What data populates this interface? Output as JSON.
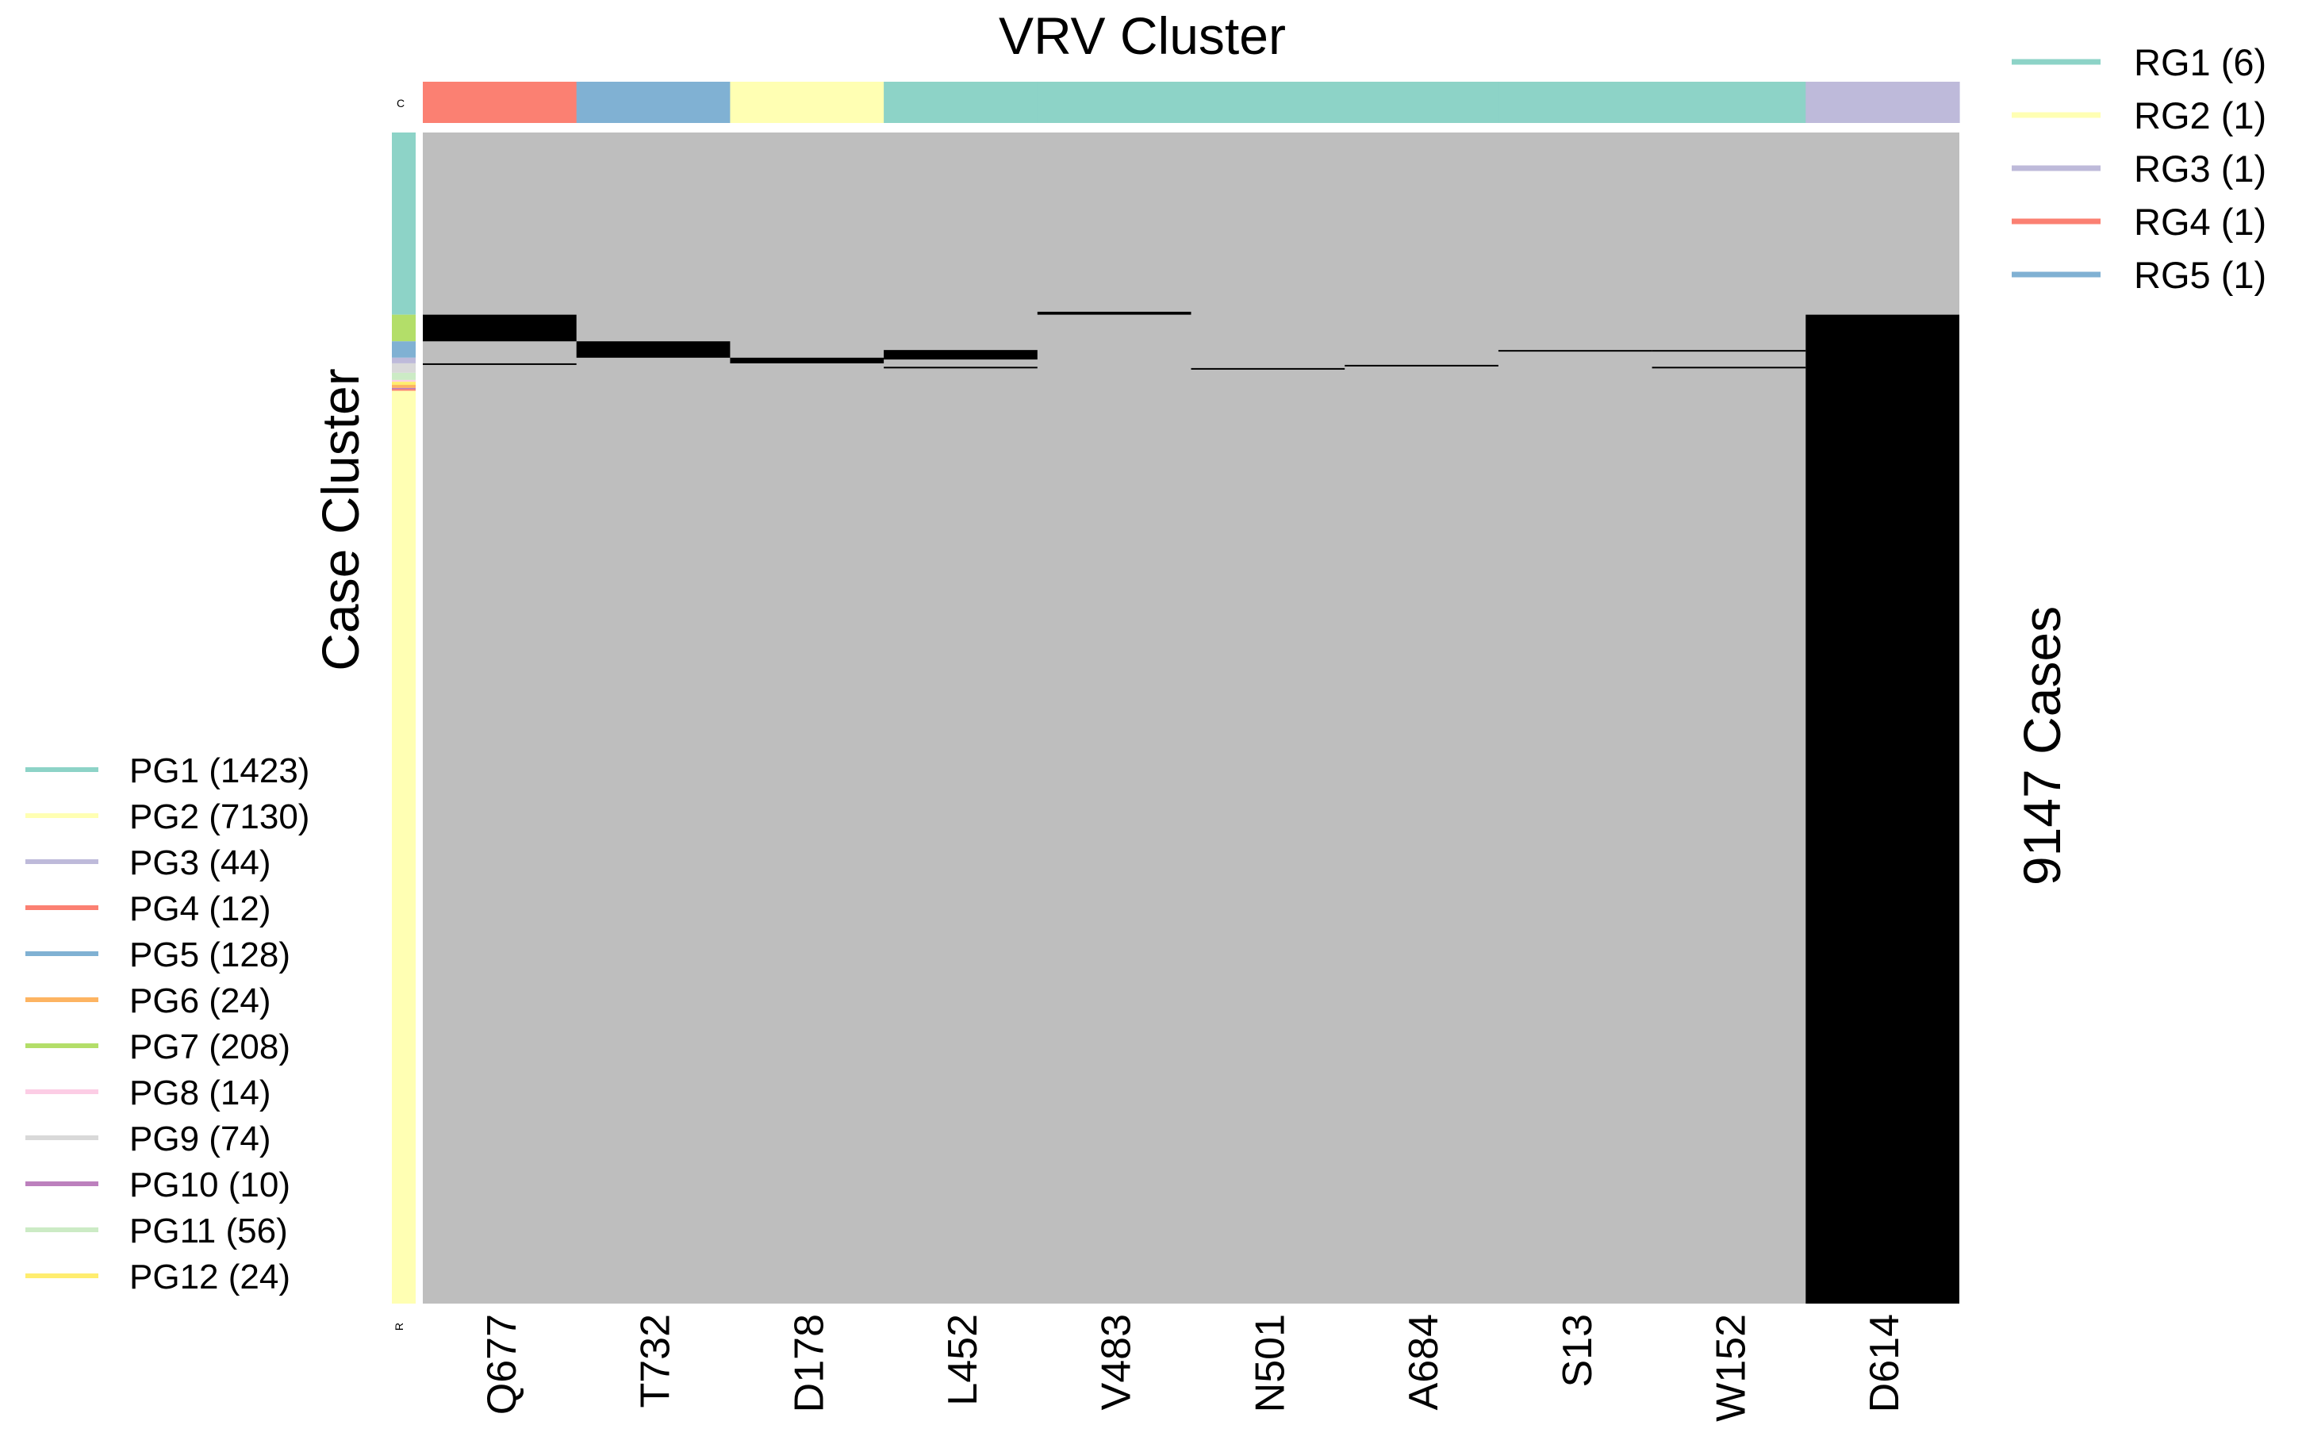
{
  "chart_data": {
    "type": "heatmap",
    "title": "VRV Cluster",
    "ylabel": "Case Cluster",
    "right_label": "9147 Cases",
    "top_track_label": "C",
    "bottom_track_label": "R",
    "background_color": "#bebebe",
    "mutation_color": "#000000",
    "total_cases": 9147,
    "columns": [
      {
        "label": "Q677",
        "group": "RG4"
      },
      {
        "label": "T732",
        "group": "RG5"
      },
      {
        "label": "D178",
        "group": "RG2"
      },
      {
        "label": "L452",
        "group": "RG1"
      },
      {
        "label": "V483",
        "group": "RG1"
      },
      {
        "label": "N501",
        "group": "RG1"
      },
      {
        "label": "A684",
        "group": "RG1"
      },
      {
        "label": "S13",
        "group": "RG1"
      },
      {
        "label": "W152",
        "group": "RG1"
      },
      {
        "label": "D614",
        "group": "RG3"
      }
    ],
    "column_groups": [
      {
        "name": "RG1",
        "count": 6,
        "label": "RG1 (6)",
        "color": "#8dd3c7"
      },
      {
        "name": "RG2",
        "count": 1,
        "label": "RG2 (1)",
        "color": "#ffffb3"
      },
      {
        "name": "RG3",
        "count": 1,
        "label": "RG3 (1)",
        "color": "#bebada"
      },
      {
        "name": "RG4",
        "count": 1,
        "label": "RG4 (1)",
        "color": "#fb8072"
      },
      {
        "name": "RG5",
        "count": 1,
        "label": "RG5 (1)",
        "color": "#80b1d3"
      }
    ],
    "row_groups": [
      {
        "name": "PG1",
        "count": 1423,
        "label": "PG1 (1423)",
        "color": "#8dd3c7"
      },
      {
        "name": "PG2",
        "count": 7130,
        "label": "PG2 (7130)",
        "color": "#ffffb3"
      },
      {
        "name": "PG3",
        "count": 44,
        "label": "PG3 (44)",
        "color": "#bebada"
      },
      {
        "name": "PG4",
        "count": 12,
        "label": "PG4 (12)",
        "color": "#fb8072"
      },
      {
        "name": "PG5",
        "count": 128,
        "label": "PG5 (128)",
        "color": "#80b1d3"
      },
      {
        "name": "PG6",
        "count": 24,
        "label": "PG6 (24)",
        "color": "#fdb462"
      },
      {
        "name": "PG7",
        "count": 208,
        "label": "PG7 (208)",
        "color": "#b3de69"
      },
      {
        "name": "PG8",
        "count": 14,
        "label": "PG8 (14)",
        "color": "#fccde5"
      },
      {
        "name": "PG9",
        "count": 74,
        "label": "PG9 (74)",
        "color": "#d9d9d9"
      },
      {
        "name": "PG10",
        "count": 10,
        "label": "PG10 (10)",
        "color": "#bc80bd"
      },
      {
        "name": "PG11",
        "count": 56,
        "label": "PG11 (56)",
        "color": "#ccebc5"
      },
      {
        "name": "PG12",
        "count": 24,
        "label": "PG12 (24)",
        "color": "#ffed6f"
      }
    ],
    "row_order": [
      "PG1",
      "PG7",
      "PG5",
      "PG3",
      "PG9",
      "PG11",
      "PG8",
      "PG12",
      "PG6",
      "PG10",
      "PG4",
      "PG2"
    ],
    "mutated_blocks": [
      {
        "column": "Q677",
        "row_start": 1423,
        "row_end": 1631
      },
      {
        "column": "Q677",
        "row_start": 1803,
        "row_end": 1815
      },
      {
        "column": "T732",
        "row_start": 1631,
        "row_end": 1759
      },
      {
        "column": "D178",
        "row_start": 1759,
        "row_end": 1803
      },
      {
        "column": "L452",
        "row_start": 1699,
        "row_end": 1773
      },
      {
        "column": "L452",
        "row_start": 1830,
        "row_end": 1840
      },
      {
        "column": "V483",
        "row_start": 1400,
        "row_end": 1423
      },
      {
        "column": "N501",
        "row_start": 1840,
        "row_end": 1850
      },
      {
        "column": "A684",
        "row_start": 1815,
        "row_end": 1827
      },
      {
        "column": "S13",
        "row_start": 1699,
        "row_end": 1709
      },
      {
        "column": "W152",
        "row_start": 1699,
        "row_end": 1709
      },
      {
        "column": "W152",
        "row_start": 1830,
        "row_end": 1840
      },
      {
        "column": "D614",
        "row_start": 1423,
        "row_end": 9147
      }
    ]
  }
}
